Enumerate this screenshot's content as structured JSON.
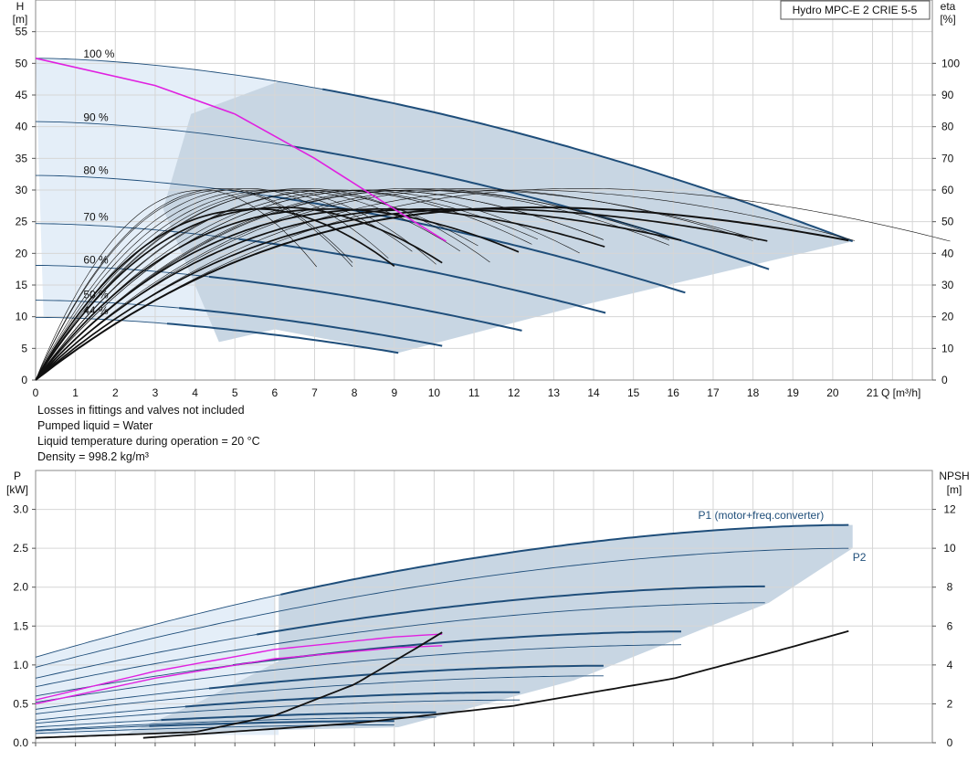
{
  "chart_data": [
    {
      "type": "line",
      "title": "Hydro MPC-E 2 CRIE 5-5",
      "xlabel": "Q [m³/h]",
      "ylabel_left": {
        "symbol": "H",
        "unit": "[m]"
      },
      "ylabel_right": {
        "symbol": "eta",
        "unit": "[%]"
      },
      "xlim": [
        0,
        22.5
      ],
      "ylim_left": [
        0,
        60
      ],
      "ylim_right": [
        0,
        120
      ],
      "x_ticks": [
        0,
        1,
        2,
        3,
        4,
        5,
        6,
        7,
        8,
        9,
        10,
        11,
        12,
        13,
        14,
        15,
        16,
        17,
        18,
        19,
        20,
        21
      ],
      "y_ticks_left": [
        0,
        5,
        10,
        15,
        20,
        25,
        30,
        35,
        40,
        45,
        50,
        55
      ],
      "y_ticks_right": [
        0,
        10,
        20,
        30,
        40,
        50,
        60,
        70,
        80,
        90,
        100
      ],
      "grid": true,
      "speed_labels": [
        {
          "text": "100 %",
          "q": 1.2,
          "h": 50.6
        },
        {
          "text": "90 %",
          "q": 1.2,
          "h": 40.6
        },
        {
          "text": "80 %",
          "q": 1.2,
          "h": 32.2
        },
        {
          "text": "70 %",
          "q": 1.2,
          "h": 24.9
        },
        {
          "text": "60 %",
          "q": 1.2,
          "h": 18.1
        },
        {
          "text": "50 %",
          "q": 1.2,
          "h": 12.6
        },
        {
          "text": "44 %",
          "q": 1.2,
          "h": 10.1
        }
      ],
      "head_curves": [
        {
          "speed": "100 %",
          "h0": 50.8,
          "qmax": 20.5,
          "hend": 21.9
        },
        {
          "speed": "90 %",
          "h0": 40.8,
          "qmax": 18.4,
          "hend": 17.5
        },
        {
          "speed": "80 %",
          "h0": 32.3,
          "qmax": 16.3,
          "hend": 13.8
        },
        {
          "speed": "70 %",
          "h0": 24.7,
          "qmax": 14.3,
          "hend": 10.6
        },
        {
          "speed": "60 %",
          "h0": 18.1,
          "qmax": 12.2,
          "hend": 7.8
        },
        {
          "speed": "50 %",
          "h0": 12.6,
          "qmax": 10.2,
          "hend": 5.4
        },
        {
          "speed": "44 %",
          "h0": 9.9,
          "qmax": 9.1,
          "hend": 4.3
        }
      ],
      "single_pump_curve": {
        "q": [
          0,
          3.0,
          5.0,
          7.0,
          8.5,
          9.5,
          10.3
        ],
        "h": [
          50.8,
          46.5,
          42.0,
          35.0,
          29.0,
          25.0,
          21.9
        ]
      },
      "efficiency_curves": [
        {
          "qmax": 20.5,
          "peak": 54.5,
          "end": 43.8
        },
        {
          "qmax": 18.4,
          "peak": 54.0,
          "end": 43.8
        },
        {
          "qmax": 16.3,
          "peak": 54.0,
          "end": 43.8
        },
        {
          "qmax": 14.3,
          "peak": 54.0,
          "end": 42.0
        },
        {
          "qmax": 12.2,
          "peak": 54.0,
          "end": 40.0
        },
        {
          "qmax": 10.2,
          "peak": 54.5,
          "end": 37.0
        },
        {
          "qmax": 9.1,
          "peak": 54.0,
          "end": 35.0
        }
      ]
    },
    {
      "type": "line",
      "xlim": [
        0,
        22.5
      ],
      "ylim_left": [
        0,
        3.5
      ],
      "ylim_right": [
        0,
        14
      ],
      "ylabel_left": {
        "symbol": "P",
        "unit": "[kW]"
      },
      "ylabel_right": {
        "symbol": "NPSH",
        "unit": "[m]"
      },
      "y_ticks_left": [
        0.0,
        0.5,
        1.0,
        1.5,
        2.0,
        2.5,
        3.0
      ],
      "y_ticks_right": [
        0,
        2,
        4,
        6,
        8,
        10,
        12
      ],
      "grid": true,
      "series_labels": [
        {
          "text": "P1 (motor+freq.converter)",
          "q": 18.2,
          "p": 2.88
        },
        {
          "text": "P2",
          "q": 20.5,
          "p": 2.34
        }
      ],
      "power_curves": [
        {
          "qmax": 20.5,
          "p1_start": 1.1,
          "p1_end": 2.8,
          "p2_start": 0.97,
          "p2_end": 2.5
        },
        {
          "qmax": 18.4,
          "p1_start": 0.83,
          "p1_end": 2.01,
          "p2_start": 0.72,
          "p2_end": 1.8
        },
        {
          "qmax": 16.3,
          "p1_start": 0.6,
          "p1_end": 1.43,
          "p2_start": 0.52,
          "p2_end": 1.26
        },
        {
          "qmax": 14.3,
          "p1_start": 0.43,
          "p1_end": 0.99,
          "p2_start": 0.37,
          "p2_end": 0.86
        },
        {
          "qmax": 12.2,
          "p1_start": 0.29,
          "p1_end": 0.65,
          "p2_start": 0.25,
          "p2_end": 0.55
        },
        {
          "qmax": 10.2,
          "p1_start": 0.2,
          "p1_end": 0.39,
          "p2_start": 0.16,
          "p2_end": 0.33
        },
        {
          "qmax": 9.1,
          "p1_start": 0.15,
          "p1_end": 0.28,
          "p2_start": 0.12,
          "p2_end": 0.23
        }
      ],
      "single_pump_power": [
        {
          "q": [
            0,
            3,
            6,
            9,
            10.3
          ],
          "p": [
            0.55,
            0.92,
            1.2,
            1.36,
            1.4
          ]
        },
        {
          "q": [
            0,
            3,
            6,
            9,
            10.3
          ],
          "p": [
            0.5,
            0.83,
            1.08,
            1.22,
            1.25
          ]
        }
      ],
      "npsh_curves": [
        {
          "q": [
            0,
            4,
            6,
            8,
            9.5,
            10.3
          ],
          "npsh": [
            0.25,
            0.55,
            1.4,
            3.0,
            4.8,
            5.8
          ]
        },
        {
          "q": [
            2.7,
            8,
            12,
            16,
            18.4,
            20.5
          ],
          "npsh": [
            0.25,
            1.0,
            1.9,
            3.3,
            4.6,
            5.8
          ]
        }
      ]
    }
  ],
  "notes": [
    "Losses in fittings and valves not included",
    "Pumped liquid = Water",
    "Liquid temperature during operation = 20 °C",
    "Density = 998.2 kg/m³"
  ],
  "colors": {
    "curve": "#1f4e7a",
    "thin_curve": "#1f4e7a",
    "efficiency": "#111111",
    "single_pump": "#e020e0",
    "area_fill": "#c8d6e3",
    "light_fill": "#e4eef8",
    "grid": "#d6d6d6",
    "label_blue": "#1f4e7a"
  }
}
